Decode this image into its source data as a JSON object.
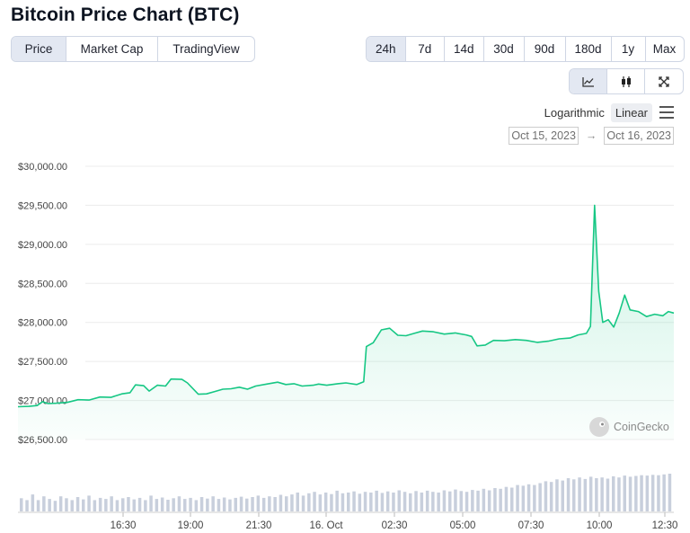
{
  "title": "Bitcoin Price Chart (BTC)",
  "view_tabs": [
    {
      "label": "Price",
      "active": true
    },
    {
      "label": "Market Cap",
      "active": false
    },
    {
      "label": "TradingView",
      "active": false
    }
  ],
  "range_tabs": [
    {
      "label": "24h",
      "active": true
    },
    {
      "label": "7d",
      "active": false
    },
    {
      "label": "14d",
      "active": false
    },
    {
      "label": "30d",
      "active": false
    },
    {
      "label": "90d",
      "active": false
    },
    {
      "label": "180d",
      "active": false
    },
    {
      "label": "1y",
      "active": false
    },
    {
      "label": "Max",
      "active": false
    }
  ],
  "chart_type_icons": [
    {
      "icon": "line-chart-icon",
      "active": true
    },
    {
      "icon": "candlestick-icon",
      "active": false
    },
    {
      "icon": "fullscreen-icon",
      "active": false
    }
  ],
  "scale": {
    "logarithmic": "Logarithmic",
    "linear": "Linear",
    "selected": "linear"
  },
  "date_range": {
    "from": "Oct 15, 2023",
    "arrow": "→",
    "to": "Oct 16, 2023"
  },
  "watermark": "CoinGecko",
  "colors": {
    "line": "#16c784",
    "fill_top": "#16c784",
    "volume": "#c8cfdc",
    "grid": "#ececec",
    "active_tab": "#e3e8f2"
  },
  "chart_data": {
    "type": "line",
    "title": "",
    "xlabel": "",
    "ylabel": "",
    "x_ticks": [
      "16:30",
      "19:00",
      "21:30",
      "16. Oct",
      "02:30",
      "05:00",
      "07:30",
      "10:00",
      "12:30"
    ],
    "y_ticks": [
      "$30,000.00",
      "$29,500.00",
      "$29,000.00",
      "$28,500.00",
      "$28,000.00",
      "$27,500.00",
      "$27,000.00",
      "$26,500.00"
    ],
    "ylim": [
      26500,
      30000
    ],
    "x_hours_range": [
      0,
      24
    ],
    "series": [
      {
        "points": [
          [
            0.0,
            26920
          ],
          [
            0.4,
            26925
          ],
          [
            0.7,
            26935
          ],
          [
            0.9,
            26985
          ],
          [
            1.1,
            26960
          ],
          [
            1.4,
            26965
          ],
          [
            1.8,
            26975
          ],
          [
            2.2,
            27010
          ],
          [
            2.6,
            27005
          ],
          [
            3.0,
            27045
          ],
          [
            3.4,
            27040
          ],
          [
            3.8,
            27085
          ],
          [
            4.1,
            27100
          ],
          [
            4.3,
            27200
          ],
          [
            4.6,
            27190
          ],
          [
            4.8,
            27120
          ],
          [
            5.1,
            27195
          ],
          [
            5.4,
            27185
          ],
          [
            5.6,
            27275
          ],
          [
            6.0,
            27270
          ],
          [
            6.2,
            27225
          ],
          [
            6.6,
            27080
          ],
          [
            6.9,
            27085
          ],
          [
            7.2,
            27115
          ],
          [
            7.5,
            27145
          ],
          [
            7.8,
            27150
          ],
          [
            8.1,
            27170
          ],
          [
            8.4,
            27145
          ],
          [
            8.7,
            27185
          ],
          [
            9.1,
            27210
          ],
          [
            9.5,
            27235
          ],
          [
            9.8,
            27205
          ],
          [
            10.1,
            27215
          ],
          [
            10.4,
            27185
          ],
          [
            10.8,
            27195
          ],
          [
            11.0,
            27210
          ],
          [
            11.3,
            27195
          ],
          [
            11.7,
            27215
          ],
          [
            12.0,
            27225
          ],
          [
            12.4,
            27205
          ],
          [
            12.65,
            27240
          ],
          [
            12.75,
            27690
          ],
          [
            13.0,
            27740
          ],
          [
            13.3,
            27905
          ],
          [
            13.6,
            27925
          ],
          [
            13.9,
            27835
          ],
          [
            14.2,
            27830
          ],
          [
            14.5,
            27860
          ],
          [
            14.8,
            27890
          ],
          [
            15.2,
            27880
          ],
          [
            15.6,
            27850
          ],
          [
            16.0,
            27865
          ],
          [
            16.4,
            27840
          ],
          [
            16.6,
            27820
          ],
          [
            16.8,
            27700
          ],
          [
            17.1,
            27710
          ],
          [
            17.4,
            27770
          ],
          [
            17.8,
            27765
          ],
          [
            18.2,
            27780
          ],
          [
            18.6,
            27770
          ],
          [
            19.0,
            27745
          ],
          [
            19.4,
            27760
          ],
          [
            19.8,
            27790
          ],
          [
            20.2,
            27800
          ],
          [
            20.5,
            27840
          ],
          [
            20.8,
            27860
          ],
          [
            20.95,
            27950
          ],
          [
            21.1,
            29500
          ],
          [
            21.25,
            28400
          ],
          [
            21.4,
            28000
          ],
          [
            21.6,
            28035
          ],
          [
            21.8,
            27940
          ],
          [
            22.0,
            28120
          ],
          [
            22.2,
            28350
          ],
          [
            22.4,
            28160
          ],
          [
            22.7,
            28140
          ],
          [
            23.0,
            28075
          ],
          [
            23.3,
            28105
          ],
          [
            23.6,
            28085
          ],
          [
            23.8,
            28140
          ],
          [
            24.0,
            28120
          ]
        ]
      }
    ],
    "volume_relative": [
      0.35,
      0.3,
      0.45,
      0.3,
      0.4,
      0.33,
      0.28,
      0.4,
      0.35,
      0.3,
      0.38,
      0.32,
      0.42,
      0.3,
      0.36,
      0.33,
      0.4,
      0.3,
      0.35,
      0.38,
      0.32,
      0.36,
      0.3,
      0.42,
      0.33,
      0.37,
      0.31,
      0.35,
      0.4,
      0.33,
      0.36,
      0.3,
      0.38,
      0.34,
      0.4,
      0.33,
      0.37,
      0.32,
      0.36,
      0.39,
      0.34,
      0.38,
      0.42,
      0.36,
      0.4,
      0.38,
      0.44,
      0.4,
      0.45,
      0.5,
      0.42,
      0.48,
      0.52,
      0.45,
      0.5,
      0.46,
      0.55,
      0.48,
      0.5,
      0.53,
      0.47,
      0.52,
      0.5,
      0.55,
      0.49,
      0.53,
      0.5,
      0.56,
      0.52,
      0.48,
      0.54,
      0.5,
      0.55,
      0.52,
      0.5,
      0.56,
      0.53,
      0.58,
      0.54,
      0.52,
      0.57,
      0.55,
      0.6,
      0.56,
      0.62,
      0.6,
      0.65,
      0.63,
      0.7,
      0.68,
      0.72,
      0.7,
      0.75,
      0.8,
      0.78,
      0.85,
      0.82,
      0.88,
      0.85,
      0.9,
      0.86,
      0.92,
      0.88,
      0.9,
      0.87,
      0.93,
      0.9,
      0.95,
      0.92,
      0.94,
      0.96,
      0.95,
      0.97,
      0.96,
      0.98,
      1.0
    ],
    "grid": true,
    "legend": "none"
  }
}
